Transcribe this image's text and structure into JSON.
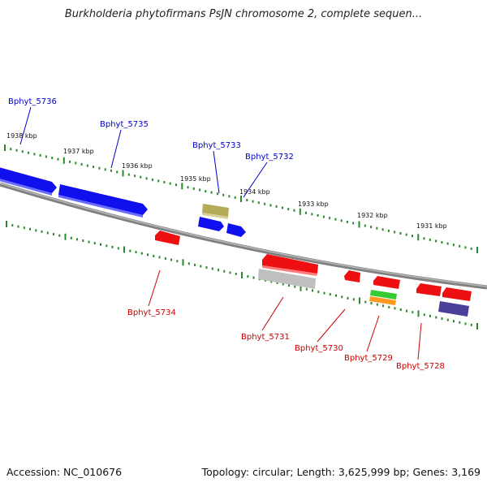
{
  "title": "Burkholderia phytofirmans PsJN chromosome 2, complete sequen...",
  "footer": {
    "accession": "Accession: NC_010676",
    "summary": "Topology: circular; Length: 3,625,999 bp; Genes: 3,169"
  },
  "colors": {
    "forward_label": "#0000cc",
    "reverse_label": "#cc0000",
    "backbone": "#888888",
    "ticks": "#2a8a2a"
  },
  "kbp_labels": [
    "1938 kbp",
    "1937 kbp",
    "1936 kbp",
    "1935 kbp",
    "1934 kbp",
    "1933 kbp",
    "1932 kbp",
    "1931 kbp"
  ],
  "forward_labels": [
    "Bphyt_5736",
    "Bphyt_5735",
    "Bphyt_5733",
    "Bphyt_5732"
  ],
  "reverse_labels": [
    "Bphyt_5734",
    "Bphyt_5731",
    "Bphyt_5730",
    "Bphyt_5729",
    "Bphyt_5728"
  ]
}
